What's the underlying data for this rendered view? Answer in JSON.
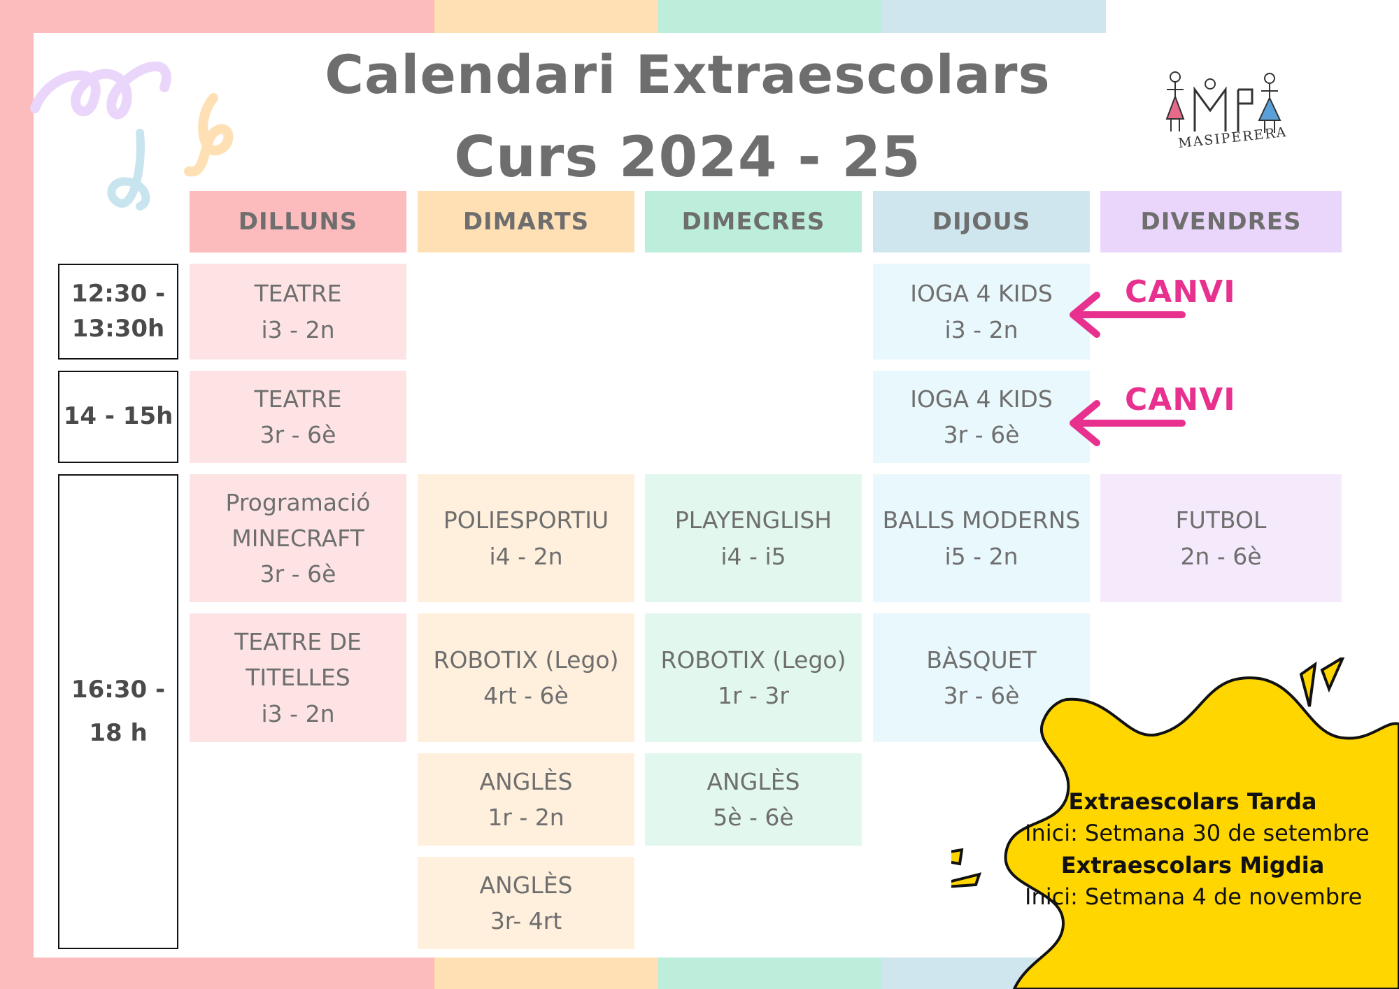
{
  "colors": {
    "pink": "#fcbcbe",
    "peach": "#ffe0b4",
    "mint": "#bdeedb",
    "blue": "#d0e6ee",
    "lavender": "#ead6fa",
    "accent_pink": "#e8308f",
    "callout_yellow": "#ffd600"
  },
  "title": {
    "line1": "Calendari Extraescolars",
    "line2": "Curs 2024 - 25"
  },
  "logo": {
    "icon": "stick-figures-logo",
    "text": "MASIPERERA"
  },
  "days": [
    "DILLUNS",
    "DIMARTS",
    "DIMECRES",
    "DIJOUS",
    "DIVENDRES"
  ],
  "times": [
    {
      "lines": [
        "12:30 -",
        "13:30h"
      ]
    },
    {
      "lines": [
        "14 - 15h"
      ]
    },
    {
      "lines": [
        "16:30 -",
        "18 h"
      ]
    }
  ],
  "activities": {
    "teatre_1": [
      "TEATRE",
      "i3 - 2n"
    ],
    "teatre_2": [
      "TEATRE",
      "3r - 6è"
    ],
    "ioga_1": [
      "IOGA 4 KIDS",
      "i3 - 2n"
    ],
    "ioga_2": [
      "IOGA 4 KIDS",
      "3r - 6è"
    ],
    "minecraft": [
      "Programació",
      "MINECRAFT",
      "3r - 6è"
    ],
    "titelles": [
      "TEATRE DE",
      "TITELLES",
      "i3 - 2n"
    ],
    "poliesportiu": [
      "POLIESPORTIU",
      "i4 - 2n"
    ],
    "robotix_dimarts": [
      "ROBOTIX (Lego)",
      "4rt - 6è"
    ],
    "angles_dimarts_1": [
      "ANGLÈS",
      "1r - 2n"
    ],
    "angles_dimarts_2": [
      "ANGLÈS",
      "3r- 4rt"
    ],
    "playenglish": [
      "PLAYENGLISH",
      "i4 - i5"
    ],
    "robotix_dimecres": [
      "ROBOTIX (Lego)",
      "1r - 3r"
    ],
    "angles_dimecres": [
      "ANGLÈS",
      "5è - 6è"
    ],
    "balls": [
      "BALLS MODERNS",
      "i5 - 2n"
    ],
    "basquet": [
      "BÀSQUET",
      "3r - 6è"
    ],
    "futbol": [
      "FUTBOL",
      "2n - 6è"
    ]
  },
  "changes": {
    "label_1": "CANVI",
    "label_2": "CANVI"
  },
  "callout": {
    "line1": "Extraescolars Tarda",
    "line2": "Inici: Setmana 30 de setembre",
    "line3": "Extraescolars Migdia",
    "line4": "Inici: Setmana 4 de novembre"
  }
}
